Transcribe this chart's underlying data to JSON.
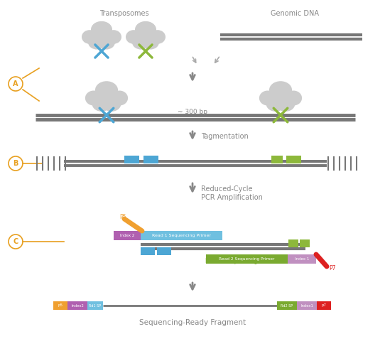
{
  "bg_color": "#ffffff",
  "fig_width": 5.42,
  "fig_height": 5.08,
  "dpi": 100,
  "transposomes_text": "Transposomes",
  "genomic_dna_text": "Genomic DNA",
  "tagmentation_text": "Tagmentation",
  "reduced_cycle_line1": "Reduced-Cycle",
  "reduced_cycle_line2": "PCR Amplification",
  "seq_ready_text": "Sequencing-Ready Fragment",
  "approx_300bp": "~ 300 bp",
  "gray_dna": "#777777",
  "blue_tag": "#4da6d4",
  "green_tag": "#8db83b",
  "orange_p5": "#f0a030",
  "purple_idx2": "#b060b0",
  "cyan_rd1": "#70c0e0",
  "olive_rd2": "#7aaa30",
  "mauve_idx1": "#c090c0",
  "red_p7": "#dd2020",
  "text_gray": "#888888",
  "arrow_gray": "#888888",
  "cloud_gray": "#cccccc",
  "label_color": "#e8a020"
}
